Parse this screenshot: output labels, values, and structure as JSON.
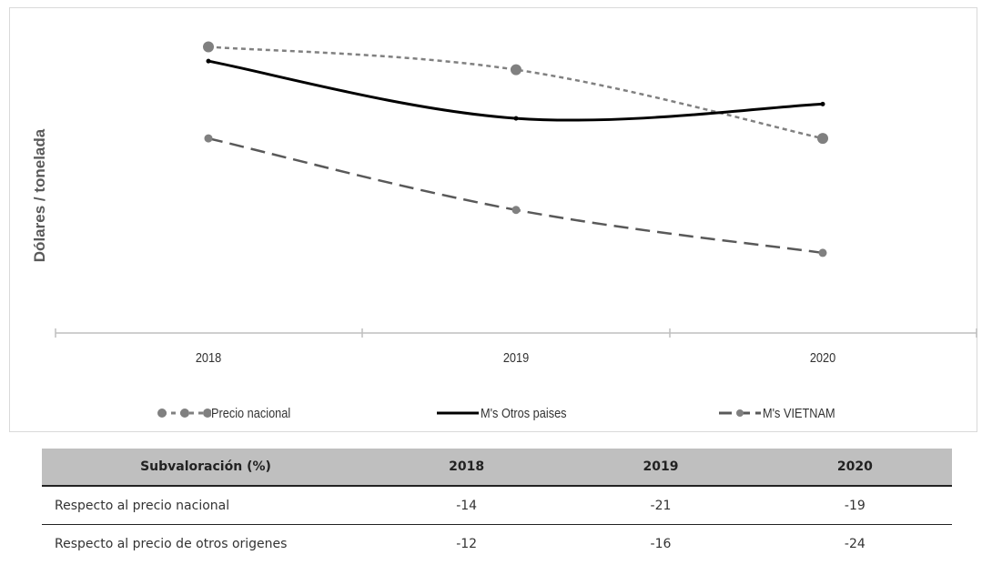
{
  "chart_data": {
    "type": "line",
    "categories": [
      "2018",
      "2019",
      "2020"
    ],
    "ylabel": "Dólares / tonelada",
    "xlabel": "",
    "yaxis_labels_shown": false,
    "legend_position": "bottom",
    "series": [
      {
        "name": "Precio nacional",
        "values": [
          100,
          92,
          68
        ],
        "color": "#808080",
        "style": "dotted",
        "marker": "circle"
      },
      {
        "name": "M's Otros paises",
        "values": [
          95,
          75,
          80
        ],
        "color": "#000000",
        "style": "solid",
        "marker": "none"
      },
      {
        "name": "M's VIETNAM",
        "values": [
          68,
          43,
          28
        ],
        "color": "#595959",
        "style": "dashed",
        "marker": "circle"
      }
    ],
    "y_range": [
      0,
      110
    ]
  },
  "table": {
    "header": {
      "label": "Subvaloración (%)",
      "cols": [
        "2018",
        "2019",
        "2020"
      ]
    },
    "rows": [
      {
        "label": "Respecto al precio nacional",
        "values": [
          "-14",
          "-21",
          "-19"
        ]
      },
      {
        "label": "Respecto al precio de otros origenes",
        "values": [
          "-12",
          "-16",
          "-24"
        ]
      }
    ]
  }
}
